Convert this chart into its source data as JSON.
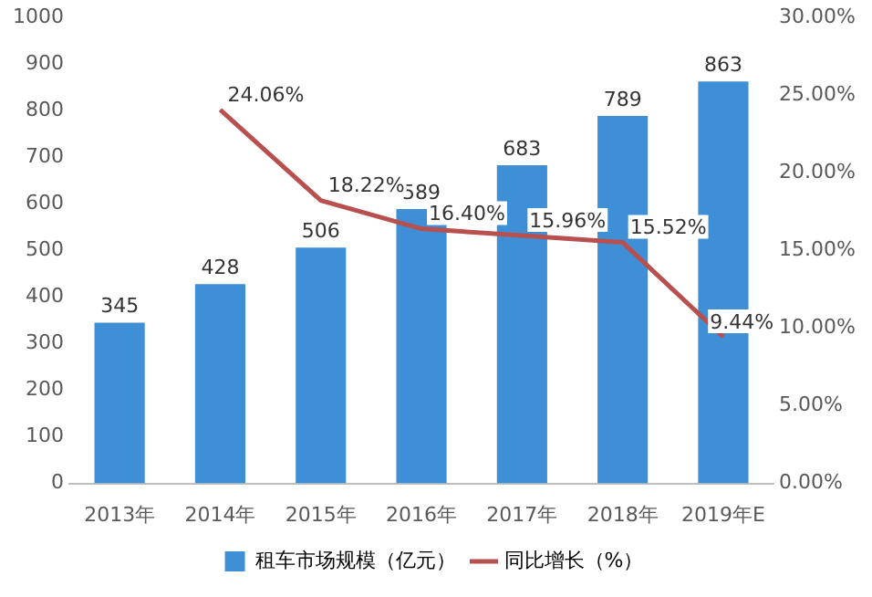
{
  "chart_data": {
    "type": "bar",
    "categories": [
      "2013年",
      "2014年",
      "2015年",
      "2016年",
      "2017年",
      "2018年",
      "2019年E"
    ],
    "series": [
      {
        "name": "租车市场规模（亿元）",
        "color": "#3f8fd6",
        "values": [
          345,
          428,
          506,
          589,
          683,
          789,
          863
        ],
        "value_labels": [
          "345",
          "428",
          "506",
          "589",
          "683",
          "789",
          "863"
        ]
      },
      {
        "name": "同比增长（%）",
        "type": "line",
        "axis": "y2",
        "color": "#b8504f",
        "values": [
          null,
          24.06,
          18.22,
          16.4,
          15.96,
          15.52,
          9.44
        ],
        "value_labels": [
          null,
          "24.06%",
          "18.22%",
          "16.40%",
          "15.96%",
          "15.52%",
          "9.44%"
        ]
      }
    ],
    "ylim": [
      0,
      1000
    ],
    "yticks": [
      0,
      100,
      200,
      300,
      400,
      500,
      600,
      700,
      800,
      900,
      1000
    ],
    "y2lim": [
      0,
      30
    ],
    "y2ticks": [
      {
        "value": 0,
        "label": "0.00%"
      },
      {
        "value": 5,
        "label": "5.00%"
      },
      {
        "value": 10,
        "label": "10.00%"
      },
      {
        "value": 15,
        "label": "15.00%"
      },
      {
        "value": 20,
        "label": "20.00%"
      },
      {
        "value": 25,
        "label": "25.00%"
      },
      {
        "value": 30,
        "label": "30.00%"
      }
    ],
    "legend": "bottom",
    "marker": "none"
  }
}
